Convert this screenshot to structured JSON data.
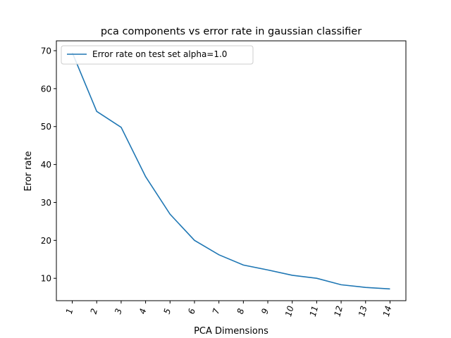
{
  "chart_data": {
    "type": "line",
    "title": "pca components vs error rate in gaussian classifier",
    "xlabel": "PCA Dimensions",
    "ylabel": "Eror rate",
    "categories": [
      "1",
      "2",
      "3",
      "4",
      "5",
      "6",
      "7",
      "8",
      "9",
      "10",
      "11",
      "12",
      "13",
      "14"
    ],
    "series": [
      {
        "name": "Error rate on test set alpha=1.0",
        "values": [
          69.5,
          54.0,
          49.8,
          36.8,
          26.9,
          20.0,
          16.2,
          13.5,
          12.2,
          10.8,
          10.0,
          8.3,
          7.6,
          7.2
        ],
        "color": "#1f77b4"
      }
    ],
    "yticks": [
      10,
      20,
      30,
      40,
      50,
      60,
      70
    ],
    "ylim": [
      4.1,
      72.6
    ],
    "xlim": [
      0.35,
      14.65
    ],
    "grid": false,
    "legend_position": "top-left",
    "xtick_rotation": "italic-rotated"
  }
}
